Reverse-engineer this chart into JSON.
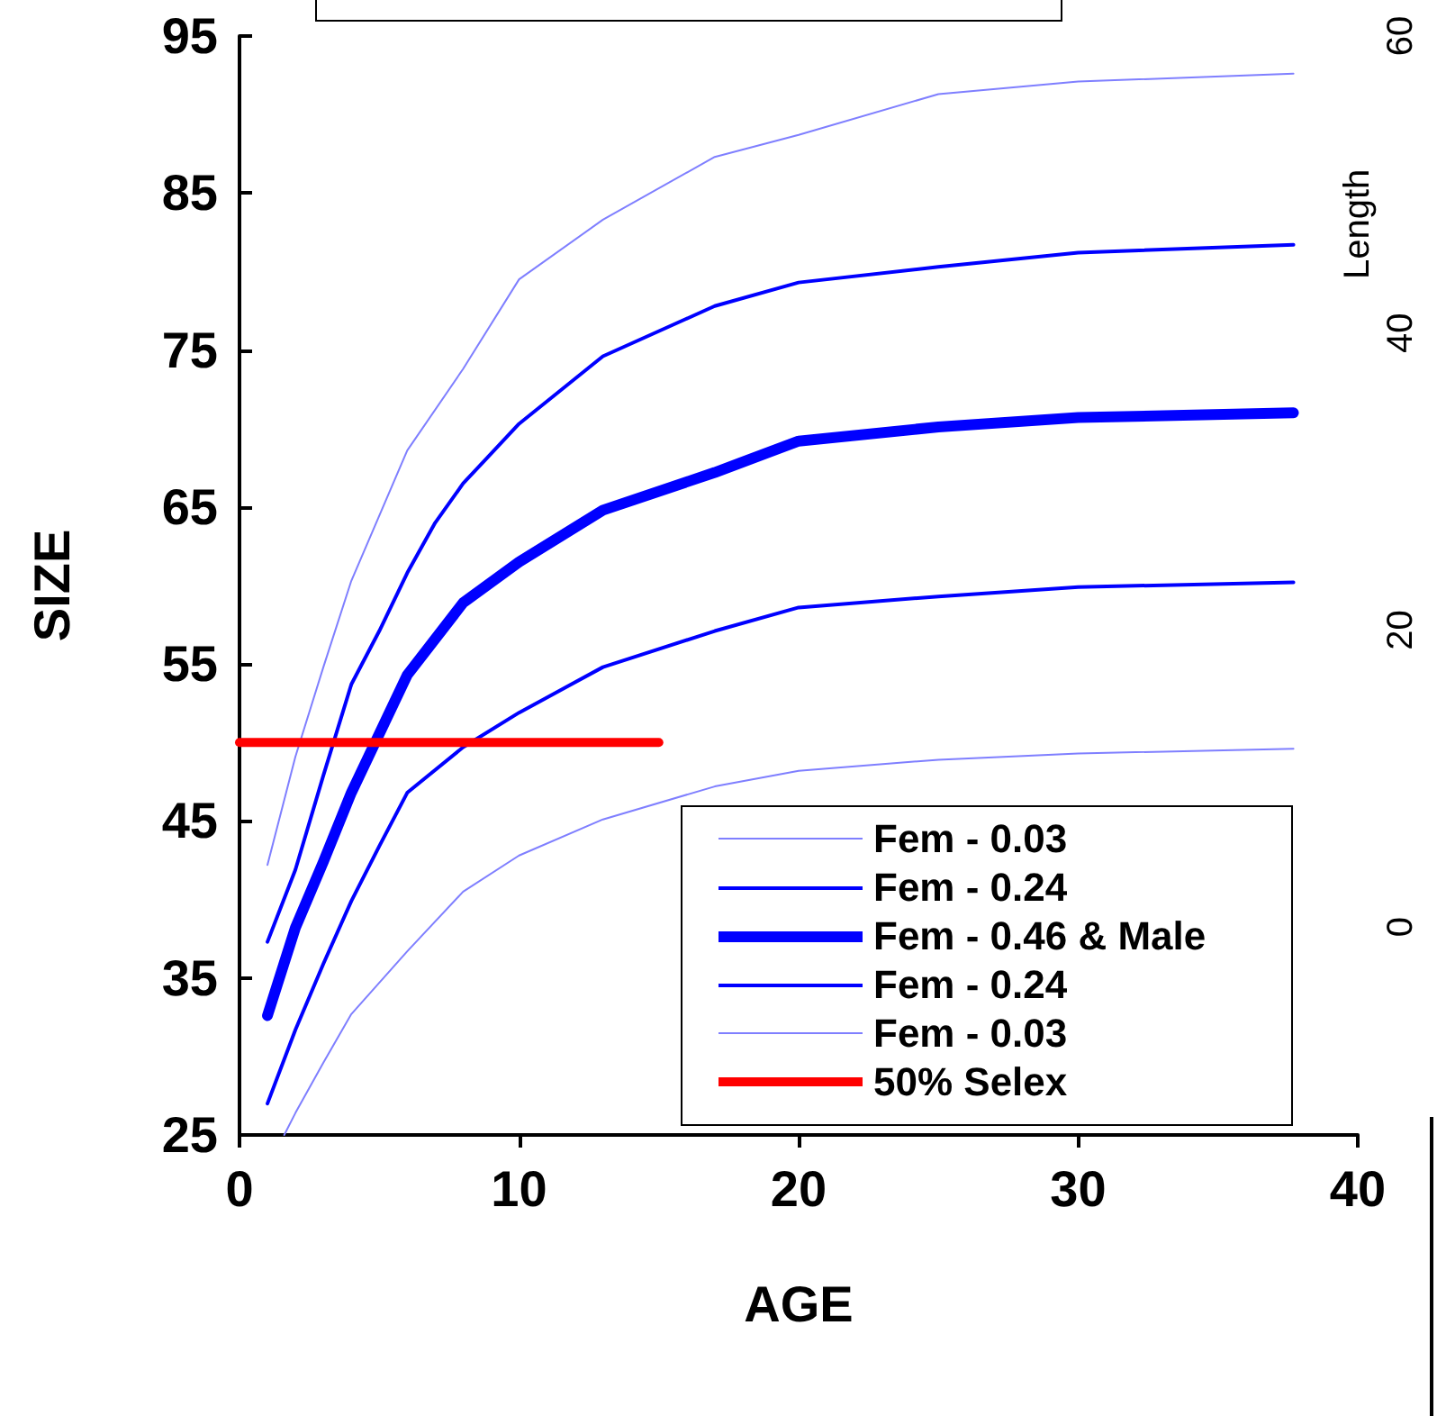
{
  "chart_data": {
    "type": "line",
    "xlabel": "AGE",
    "ylabel": "SIZE",
    "y2label": "Length",
    "xlim": [
      0,
      40
    ],
    "xticks": [
      0,
      10,
      20,
      30,
      40
    ],
    "ylim": [
      25,
      95
    ],
    "yticks": [
      25,
      35,
      45,
      55,
      65,
      75,
      85,
      95
    ],
    "y2lim": [
      -14,
      60
    ],
    "y2ticks": [
      0,
      20,
      40,
      60
    ],
    "grid": false,
    "legend": "bottom right",
    "marker": "none",
    "series": [
      {
        "name": "Fem - 0.03",
        "color": "#7f7fff",
        "x": [
          1,
          2,
          3,
          4,
          6,
          8,
          10,
          13,
          17,
          20,
          25,
          30,
          37.7
        ],
        "values": [
          42.2,
          49.1,
          54.8,
          60.3,
          68.6,
          73.8,
          79.5,
          83.3,
          87.3,
          88.7,
          91.3,
          92.1,
          92.6
        ]
      },
      {
        "name": "Fem - 0.24",
        "color": "#0000ff",
        "x": [
          1,
          2,
          3,
          4,
          5,
          6,
          7,
          8,
          10,
          13,
          17,
          20,
          25,
          30,
          37.7
        ],
        "values": [
          37.3,
          41.9,
          47.9,
          53.7,
          57.1,
          60.8,
          64.0,
          66.5,
          70.3,
          74.6,
          77.8,
          79.3,
          80.3,
          81.2,
          81.7
        ]
      },
      {
        "name": "Fem - 0.46 & Male",
        "color": "#0000ff",
        "x": [
          1,
          2,
          3,
          4,
          6,
          8,
          10,
          13,
          17,
          20,
          25,
          30,
          37.7
        ],
        "values": [
          32.6,
          38.2,
          42.4,
          46.8,
          54.3,
          58.9,
          61.5,
          64.8,
          67.2,
          69.2,
          70.1,
          70.7,
          71.0
        ]
      },
      {
        "name": "Fem - 0.24",
        "color": "#0000ff",
        "x": [
          1,
          2,
          3,
          4,
          5,
          6,
          8,
          10,
          13,
          17,
          20,
          25,
          30,
          37.7
        ],
        "values": [
          27.0,
          31.7,
          35.9,
          39.9,
          43.4,
          46.8,
          49.7,
          51.9,
          54.8,
          57.1,
          58.6,
          59.3,
          59.9,
          60.2
        ]
      },
      {
        "name": "Fem - 0.03",
        "color": "#7f7fff",
        "x": [
          1.6,
          2,
          3,
          4,
          6,
          8,
          10,
          13,
          17,
          20,
          25,
          30,
          37.7
        ],
        "values": [
          25,
          26.4,
          29.6,
          32.7,
          36.7,
          40.5,
          42.8,
          45.1,
          47.2,
          48.2,
          48.9,
          49.3,
          49.6
        ]
      },
      {
        "name": "50% Selex",
        "color": "#ff0000",
        "x": [
          0,
          15
        ],
        "values": [
          50,
          50
        ]
      }
    ]
  }
}
